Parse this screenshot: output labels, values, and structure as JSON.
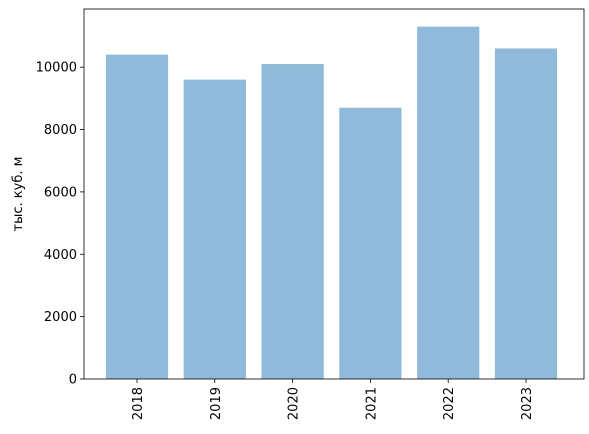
{
  "chart_data": {
    "type": "bar",
    "ylabel": "тыс. куб. м",
    "categories": [
      "2018",
      "2019",
      "2020",
      "2021",
      "2022",
      "2023"
    ],
    "values": [
      10400,
      9600,
      10100,
      8700,
      11300,
      10600
    ],
    "color": "#8fbad9",
    "ylim": [
      0,
      11865
    ],
    "yticks": [
      0,
      2000,
      4000,
      6000,
      8000,
      10000
    ],
    "grid": false
  }
}
